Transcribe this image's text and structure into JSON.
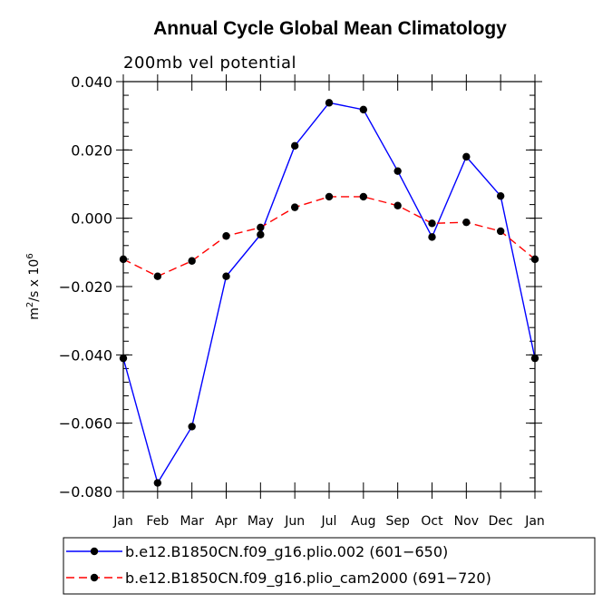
{
  "chart_data": {
    "type": "line",
    "title": "Annual Cycle Global Mean Climatology",
    "subtitle": "200mb vel potential",
    "ylabel": "m²/s x 10⁶",
    "ylabel_base": "m",
    "ylabel_sup1": "2",
    "ylabel_mid": "/s x 10",
    "ylabel_sup2": "6",
    "xlabel": "",
    "categories": [
      "Jan",
      "Feb",
      "Mar",
      "Apr",
      "May",
      "Jun",
      "Jul",
      "Aug",
      "Sep",
      "Oct",
      "Nov",
      "Dec",
      "Jan"
    ],
    "ylim": [
      -0.08,
      0.04
    ],
    "yticks": [
      0.04,
      0.02,
      0.0,
      -0.02,
      -0.04,
      -0.06,
      -0.08
    ],
    "ytick_labels": [
      "0.040",
      "0.020",
      "0.000",
      "−0.020",
      "−0.040",
      "−0.060",
      "−0.080"
    ],
    "series": [
      {
        "name": "b.e12.B1850CN.f09_g16.plio.002 (601−650)",
        "color": "#0000ff",
        "style": "solid",
        "values": [
          -0.041,
          -0.0775,
          -0.061,
          -0.017,
          -0.0048,
          0.0212,
          0.0338,
          0.0318,
          0.0138,
          -0.0055,
          0.018,
          0.0065,
          -0.041
        ]
      },
      {
        "name": "b.e12.B1850CN.f09_g16.plio_cam2000 (691−720)",
        "color": "#ff0000",
        "style": "dashed",
        "values": [
          -0.012,
          -0.017,
          -0.0125,
          -0.0052,
          -0.0027,
          0.0032,
          0.0063,
          0.0063,
          0.0037,
          -0.0015,
          -0.0012,
          -0.0038,
          -0.012
        ]
      }
    ],
    "legend_position": "bottom"
  }
}
